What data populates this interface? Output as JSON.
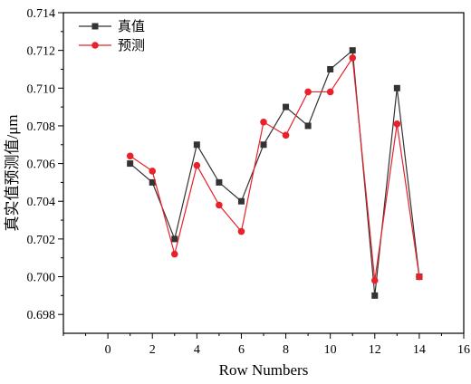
{
  "chart_data": {
    "type": "line",
    "xlabel": "Row Numbers",
    "ylabel": "真实值预测值/μm",
    "xlim": [
      -2,
      16
    ],
    "ylim": [
      0.697,
      0.714
    ],
    "xticks": [
      0,
      2,
      4,
      6,
      8,
      10,
      12,
      14,
      16
    ],
    "yticks": [
      0.698,
      0.7,
      0.702,
      0.704,
      0.706,
      0.708,
      0.71,
      0.712,
      0.714
    ],
    "grid": false,
    "legend_position": "top-left",
    "x": [
      1,
      2,
      3,
      4,
      5,
      6,
      7,
      8,
      9,
      10,
      11,
      12,
      13,
      14
    ],
    "series": [
      {
        "name": "真值",
        "color": "#333333",
        "marker": "square",
        "values": [
          0.706,
          0.705,
          0.702,
          0.707,
          0.705,
          0.704,
          0.707,
          0.709,
          0.708,
          0.711,
          0.712,
          0.699,
          0.71,
          0.7
        ]
      },
      {
        "name": "预测",
        "color": "#e8212a",
        "marker": "circle",
        "values": [
          0.7064,
          0.7056,
          0.7012,
          0.7059,
          0.7038,
          0.7024,
          0.7082,
          0.7075,
          0.7098,
          0.7098,
          0.7116,
          0.6998,
          0.7081,
          0.7
        ]
      }
    ]
  }
}
